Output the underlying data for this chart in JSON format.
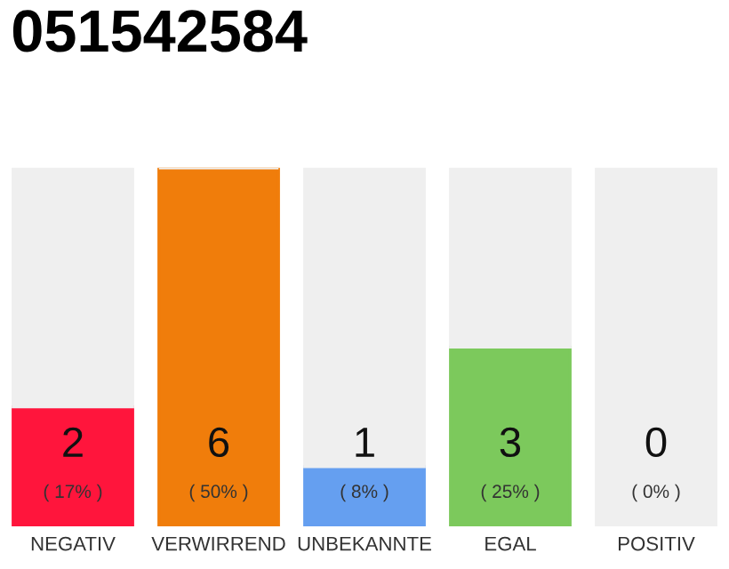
{
  "chart_data": {
    "type": "bar",
    "title": "051542584",
    "categories": [
      "NEGATIV",
      "VERWIRREND",
      "UNBEKANNTE",
      "EGAL",
      "POSITIV"
    ],
    "stacked": true,
    "series": [
      {
        "colors": [
          "#ff153c",
          "#f07d0b",
          "#659ff0",
          "#7cc95c",
          "#22a845"
        ],
        "values": [
          2,
          6,
          1,
          3,
          0
        ],
        "value_labels": [
          "2",
          "6",
          "1",
          "3",
          "0"
        ]
      },
      {
        "color": "#efefef",
        "values": [
          4,
          0,
          5,
          3,
          6
        ]
      }
    ],
    "ylim": [
      0,
      6
    ],
    "tick_labels": "x",
    "grid": false,
    "annotations": [
      {
        "text": "( 17% )",
        "x": "NEGATIV",
        "y": 0
      },
      {
        "text": "( 50% )",
        "x": "VERWIRREND",
        "y": 0
      },
      {
        "text": "( 8% )",
        "x": "UNBEKANNTE",
        "y": 0
      },
      {
        "text": "( 25% )",
        "x": "EGAL",
        "y": 0
      },
      {
        "text": "( 0% )",
        "x": "POSITIV",
        "y": 0
      }
    ]
  }
}
